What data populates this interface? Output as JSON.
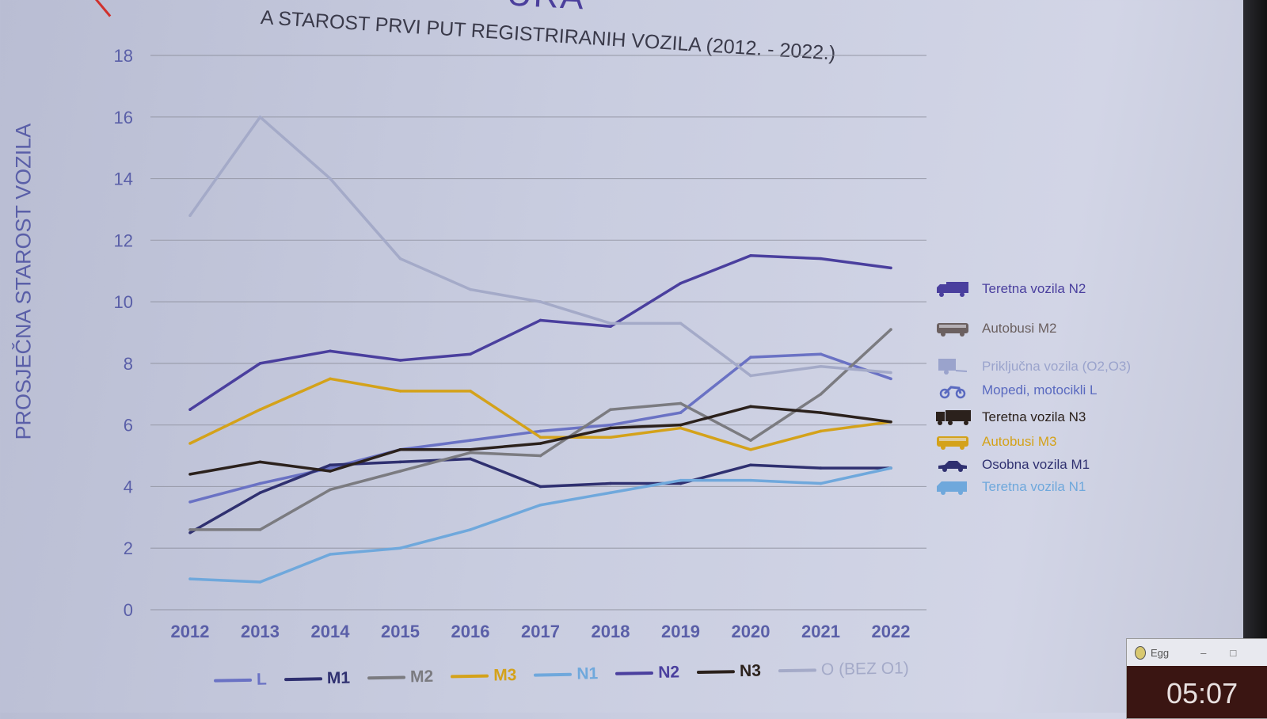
{
  "header": {
    "heading_fragment": "URA",
    "title": "A STAROST PRVI PUT REGISTRIRANIH VOZILA (2012. - 2022.)"
  },
  "chart_data": {
    "type": "line",
    "title": "A STAROST PRVI PUT REGISTRIRANIH VOZILA (2012. - 2022.)",
    "xlabel": "",
    "ylabel": "PROSJEČNA STAROST VOZILA",
    "ylim": [
      0,
      18
    ],
    "yticks": [
      "0",
      "2",
      "4",
      "6",
      "8",
      "10",
      "12",
      "14",
      "16",
      "18"
    ],
    "categories": [
      "2012",
      "2013",
      "2014",
      "2015",
      "2016",
      "2017",
      "2018",
      "2019",
      "2020",
      "2021",
      "2022"
    ],
    "grid": true,
    "legend": "bottom",
    "series": [
      {
        "name": "L",
        "color": "#6a72c4",
        "values": [
          3.5,
          4.1,
          4.6,
          5.2,
          5.5,
          5.8,
          6.0,
          6.4,
          8.2,
          8.3,
          7.5
        ]
      },
      {
        "name": "M1",
        "color": "#2f3070",
        "values": [
          2.5,
          3.8,
          4.7,
          4.8,
          4.9,
          4.0,
          4.1,
          4.1,
          4.7,
          4.6,
          4.6
        ]
      },
      {
        "name": "M2",
        "color": "#7b7b80",
        "values": [
          2.6,
          2.6,
          3.9,
          4.5,
          5.1,
          5.0,
          6.5,
          6.7,
          5.5,
          7.0,
          9.1
        ]
      },
      {
        "name": "M3",
        "color": "#d4a21a",
        "values": [
          5.4,
          6.5,
          7.5,
          7.1,
          7.1,
          5.6,
          5.6,
          5.9,
          5.2,
          5.8,
          6.1
        ]
      },
      {
        "name": "N1",
        "color": "#6fa8dc",
        "values": [
          1.0,
          0.9,
          1.8,
          2.0,
          2.6,
          3.4,
          3.8,
          4.2,
          4.2,
          4.1,
          4.6
        ]
      },
      {
        "name": "N2",
        "color": "#4a3f9e",
        "values": [
          6.5,
          8.0,
          8.4,
          8.1,
          8.3,
          9.4,
          9.2,
          10.6,
          11.5,
          11.4,
          11.1
        ]
      },
      {
        "name": "N3",
        "color": "#2b211c",
        "values": [
          4.4,
          4.8,
          4.5,
          5.2,
          5.2,
          5.4,
          5.9,
          6.0,
          6.6,
          6.4,
          6.1
        ]
      },
      {
        "name": "O (BEZ O1)",
        "color": "#a4aac8",
        "values": [
          12.8,
          16.0,
          14.0,
          11.4,
          10.4,
          10.0,
          9.3,
          9.3,
          7.6,
          7.9,
          7.7
        ]
      }
    ]
  },
  "side_legend": [
    {
      "label": "Teretna vozila N2",
      "icon": "truck-icon",
      "color": "#4a3f9e"
    },
    {
      "label": "Autobusi M2",
      "icon": "bus-icon",
      "color": "#6b6060"
    },
    {
      "label": "Priključna vozila (O2,O3)",
      "icon": "trailer-icon",
      "color": "#9aa3cc"
    },
    {
      "label": "Mopedi, motocikli L",
      "icon": "motorcycle-icon",
      "color": "#5a6ac0"
    },
    {
      "label": "Teretna vozila N3",
      "icon": "heavy-truck-icon",
      "color": "#2b211c"
    },
    {
      "label": "Autobusi M3",
      "icon": "bus-icon",
      "color": "#d4a21a"
    },
    {
      "label": "Osobna vozila M1",
      "icon": "car-icon",
      "color": "#2f3070"
    },
    {
      "label": "Teretna vozila N1",
      "icon": "van-icon",
      "color": "#6fa8dc"
    }
  ],
  "egg_window": {
    "title": "Egg",
    "minimize": "–",
    "maximize": "□",
    "time": "05:07"
  }
}
